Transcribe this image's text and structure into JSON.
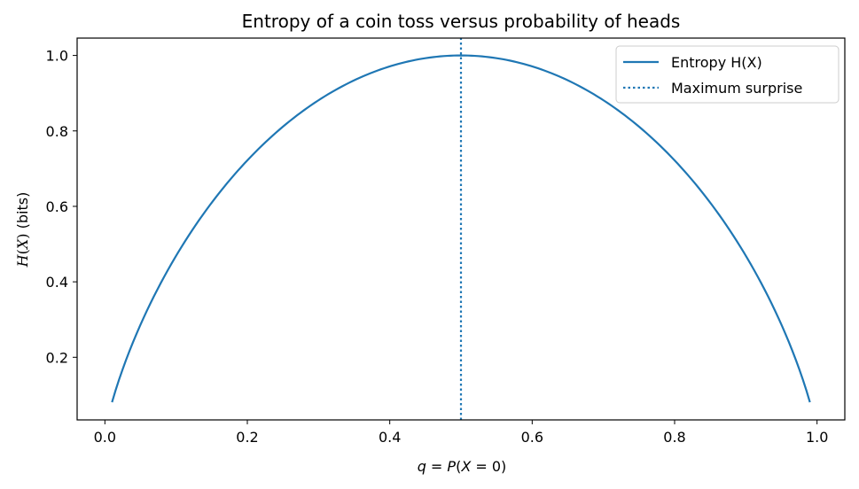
{
  "chart_data": {
    "type": "line",
    "title": "Entropy of a coin toss versus probability of heads",
    "xlabel": "q = P(X = 0)",
    "ylabel": "H(X) (bits)",
    "xlim": [
      -0.039,
      1.039
    ],
    "ylim": [
      0.034,
      1.046
    ],
    "x_ticks": [
      0.0,
      0.2,
      0.4,
      0.6,
      0.8,
      1.0
    ],
    "x_tick_labels": [
      "0.0",
      "0.2",
      "0.4",
      "0.6",
      "0.8",
      "1.0"
    ],
    "y_ticks": [
      0.2,
      0.4,
      0.6,
      0.8,
      1.0
    ],
    "y_tick_labels": [
      "0.2",
      "0.4",
      "0.6",
      "0.8",
      "1.0"
    ],
    "grid": false,
    "legend_position": "top-right",
    "series": [
      {
        "name": "Entropy H(X)",
        "style": "solid",
        "color": "#1f77b4",
        "x": [
          0.01,
          0.03,
          0.05,
          0.08,
          0.1,
          0.15,
          0.2,
          0.25,
          0.3,
          0.35,
          0.4,
          0.45,
          0.5,
          0.55,
          0.6,
          0.65,
          0.7,
          0.75,
          0.8,
          0.85,
          0.9,
          0.92,
          0.95,
          0.97,
          0.99
        ],
        "y": [
          0.081,
          0.194,
          0.286,
          0.402,
          0.469,
          0.61,
          0.722,
          0.811,
          0.881,
          0.934,
          0.971,
          0.993,
          1.0,
          0.993,
          0.971,
          0.934,
          0.881,
          0.811,
          0.722,
          0.61,
          0.469,
          0.402,
          0.286,
          0.194,
          0.081
        ]
      },
      {
        "name": "Maximum surprise",
        "style": "dotted",
        "color": "#1f77b4",
        "x": [
          0.5,
          0.5
        ],
        "y": [
          0.034,
          1.046
        ]
      }
    ]
  }
}
